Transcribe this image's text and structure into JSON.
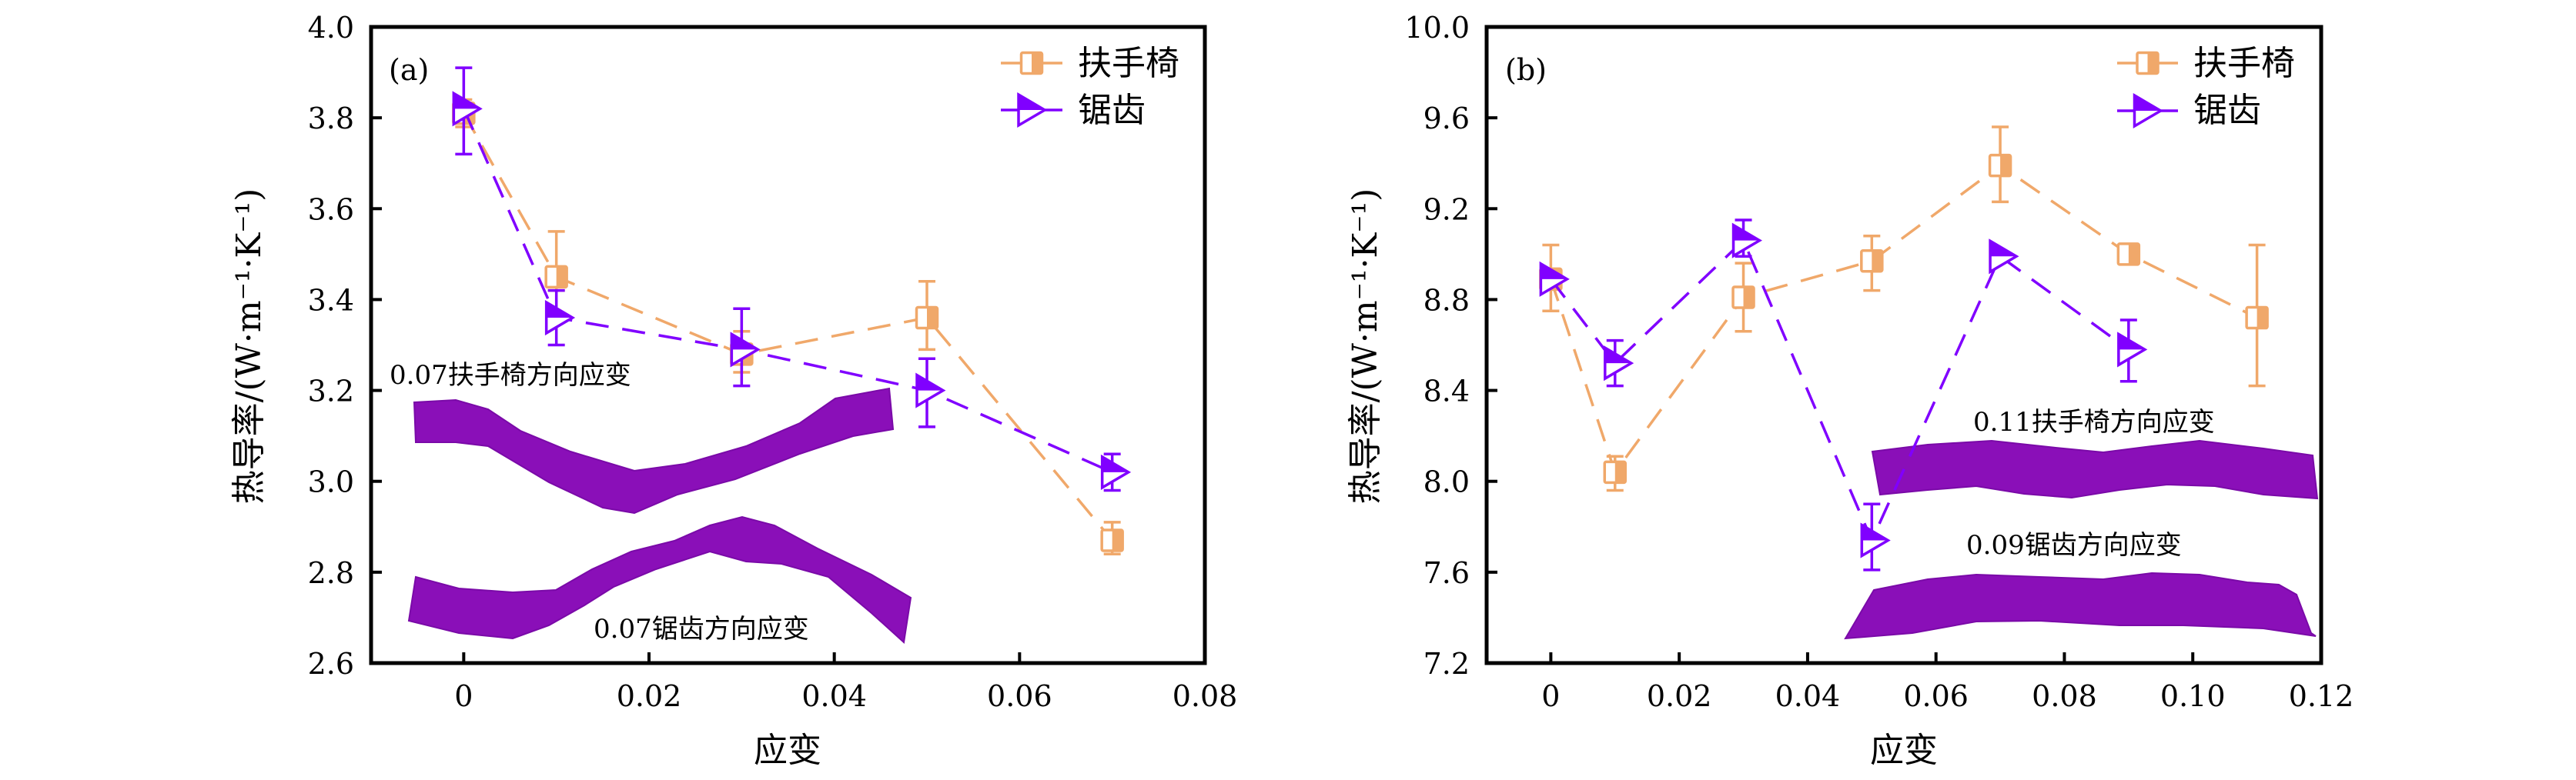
{
  "chart_data": [
    {
      "type": "line",
      "panel_label": "(a)",
      "xlabel": "应变",
      "ylabel": "热导率/(W·m⁻¹·K⁻¹)",
      "xlim": [
        -0.01,
        0.08
      ],
      "ylim": [
        2.6,
        4.0
      ],
      "xticks": [
        0,
        0.02,
        0.04,
        0.06,
        0.08
      ],
      "xtick_labels": [
        "0",
        "0.02",
        "0.04",
        "0.06",
        "0.08"
      ],
      "yticks": [
        2.6,
        2.8,
        3.0,
        3.2,
        3.4,
        3.6,
        3.8,
        4.0
      ],
      "ytick_labels": [
        "2.6",
        "2.8",
        "3.0",
        "3.2",
        "3.4",
        "3.6",
        "3.8",
        "4.0"
      ],
      "grid": false,
      "legend_position": "top-right",
      "series": [
        {
          "name": "扶手椅",
          "color": "#F0A86A",
          "marker": "half-filled-square",
          "x": [
            0,
            0.01,
            0.03,
            0.05,
            0.07
          ],
          "y": [
            3.81,
            3.45,
            3.28,
            3.36,
            2.87
          ],
          "err_low": [
            3.78,
            3.42,
            3.24,
            3.29,
            2.84
          ],
          "err_high": [
            3.84,
            3.55,
            3.33,
            3.44,
            2.91
          ]
        },
        {
          "name": "锯齿",
          "color": "#8000FF",
          "marker": "half-filled-triangle-right",
          "x": [
            0,
            0.01,
            0.03,
            0.05,
            0.07
          ],
          "y": [
            3.82,
            3.36,
            3.29,
            3.2,
            3.02
          ],
          "err_low": [
            3.72,
            3.3,
            3.21,
            3.12,
            2.98
          ],
          "err_high": [
            3.91,
            3.42,
            3.38,
            3.27,
            3.06
          ]
        }
      ],
      "annotations": [
        {
          "id": "sheet-armchair",
          "text": "0.07扶手椅方向应变"
        },
        {
          "id": "sheet-zigzag",
          "text": "0.07锯齿方向应变"
        }
      ]
    },
    {
      "type": "line",
      "panel_label": "(b)",
      "xlabel": "应变",
      "ylabel": "热导率/(W·m⁻¹·K⁻¹)",
      "xlim": [
        -0.01,
        0.12
      ],
      "ylim": [
        7.2,
        10.0
      ],
      "xticks": [
        0,
        0.02,
        0.04,
        0.06,
        0.08,
        0.1,
        0.12
      ],
      "xtick_labels": [
        "0",
        "0.02",
        "0.04",
        "0.06",
        "0.08",
        "0.10",
        "0.12"
      ],
      "yticks": [
        7.2,
        7.6,
        8.0,
        8.4,
        8.8,
        9.2,
        9.6,
        10.0
      ],
      "ytick_labels": [
        "7.2",
        "7.6",
        "8.0",
        "8.4",
        "8.8",
        "9.2",
        "9.6",
        "10.0"
      ],
      "grid": false,
      "legend_position": "top-right",
      "series": [
        {
          "name": "扶手椅",
          "color": "#F0A86A",
          "marker": "half-filled-square",
          "x": [
            0,
            0.01,
            0.03,
            0.05,
            0.07,
            0.09,
            0.11
          ],
          "y": [
            8.89,
            8.04,
            8.81,
            8.97,
            9.39,
            9.0,
            8.72
          ],
          "err_low": [
            8.75,
            7.96,
            8.66,
            8.84,
            9.23,
            8.97,
            8.42
          ],
          "err_high": [
            9.04,
            8.11,
            8.96,
            9.08,
            9.56,
            9.03,
            9.04
          ]
        },
        {
          "name": "锯齿",
          "color": "#8000FF",
          "marker": "half-filled-triangle-right",
          "x": [
            0,
            0.01,
            0.03,
            0.05,
            0.07,
            0.09
          ],
          "y": [
            8.89,
            8.52,
            9.06,
            7.74,
            8.99,
            8.58
          ],
          "err_low": [
            8.87,
            8.42,
            8.99,
            7.61,
            8.97,
            8.44
          ],
          "err_high": [
            8.91,
            8.62,
            9.15,
            7.9,
            9.01,
            8.71
          ]
        }
      ],
      "annotations": [
        {
          "id": "sheet-armchair",
          "text": "0.11扶手椅方向应变"
        },
        {
          "id": "sheet-zigzag",
          "text": "0.09锯齿方向应变"
        }
      ]
    }
  ]
}
